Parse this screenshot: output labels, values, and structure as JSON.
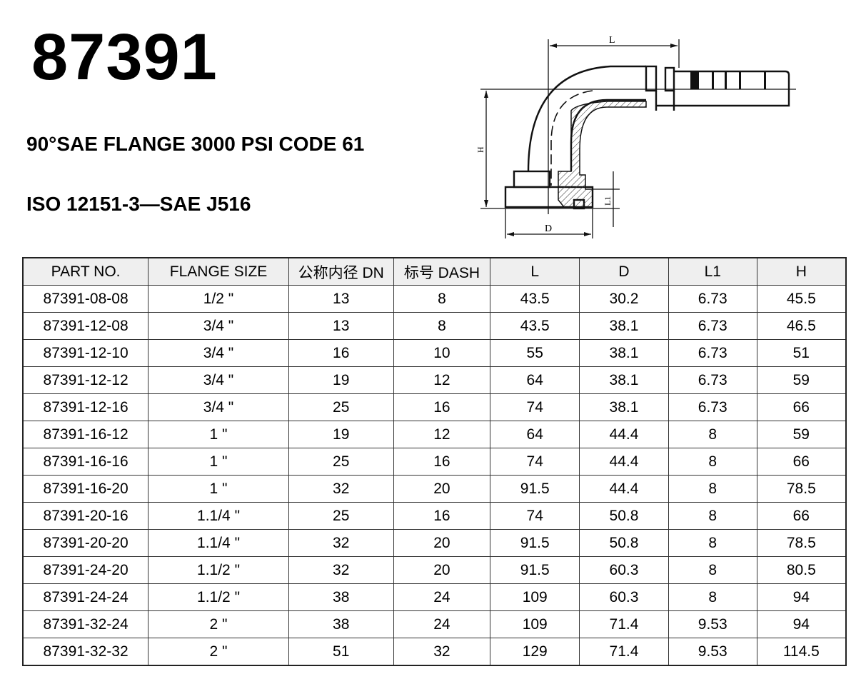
{
  "title": "87391",
  "subtitle": "90°SAE FLANGE 3000 PSI CODE 61",
  "standard": "ISO 12151-3—SAE J516",
  "diagram": {
    "labels": {
      "L": "L",
      "H": "H",
      "D": "D",
      "L1": "L1"
    }
  },
  "table": {
    "headers": [
      "PART NO.",
      "FLANGE SIZE",
      "公称内径 DN",
      "标号 DASH",
      "L",
      "D",
      "L1",
      "H"
    ],
    "rows": [
      [
        "87391-08-08",
        "1/2 \"",
        "13",
        "8",
        "43.5",
        "30.2",
        "6.73",
        "45.5"
      ],
      [
        "87391-12-08",
        "3/4 \"",
        "13",
        "8",
        "43.5",
        "38.1",
        "6.73",
        "46.5"
      ],
      [
        "87391-12-10",
        "3/4 \"",
        "16",
        "10",
        "55",
        "38.1",
        "6.73",
        "51"
      ],
      [
        "87391-12-12",
        "3/4 \"",
        "19",
        "12",
        "64",
        "38.1",
        "6.73",
        "59"
      ],
      [
        "87391-12-16",
        "3/4 \"",
        "25",
        "16",
        "74",
        "38.1",
        "6.73",
        "66"
      ],
      [
        "87391-16-12",
        "1 \"",
        "19",
        "12",
        "64",
        "44.4",
        "8",
        "59"
      ],
      [
        "87391-16-16",
        "1 \"",
        "25",
        "16",
        "74",
        "44.4",
        "8",
        "66"
      ],
      [
        "87391-16-20",
        "1 \"",
        "32",
        "20",
        "91.5",
        "44.4",
        "8",
        "78.5"
      ],
      [
        "87391-20-16",
        "1.1/4 \"",
        "25",
        "16",
        "74",
        "50.8",
        "8",
        "66"
      ],
      [
        "87391-20-20",
        "1.1/4 \"",
        "32",
        "20",
        "91.5",
        "50.8",
        "8",
        "78.5"
      ],
      [
        "87391-24-20",
        "1.1/2 \"",
        "32",
        "20",
        "91.5",
        "60.3",
        "8",
        "80.5"
      ],
      [
        "87391-24-24",
        "1.1/2 \"",
        "38",
        "24",
        "109",
        "60.3",
        "8",
        "94"
      ],
      [
        "87391-32-24",
        "2 \"",
        "38",
        "24",
        "109",
        "71.4",
        "9.53",
        "94"
      ],
      [
        "87391-32-32",
        "2 \"",
        "51",
        "32",
        "129",
        "71.4",
        "9.53",
        "114.5"
      ]
    ]
  }
}
